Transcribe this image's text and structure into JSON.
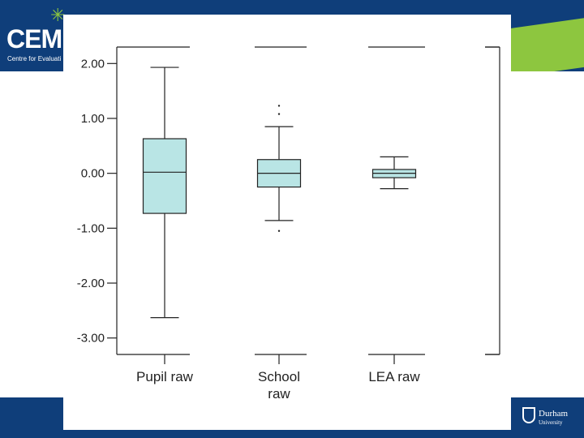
{
  "branding": {
    "logo_text": "CEM",
    "logo_subtitle": "Centre for Evaluati",
    "university_name": "Durham",
    "university_sub": "University"
  },
  "colors": {
    "navy": "#0f3e7a",
    "green": "#8dc63f",
    "box_fill": "#b9e5e5",
    "line": "#222222"
  },
  "chart_data": {
    "type": "boxplot",
    "title": "",
    "xlabel": "",
    "ylabel": "",
    "ylim": [
      -3.3,
      2.3
    ],
    "yticks": [
      2.0,
      1.0,
      0.0,
      -1.0,
      -2.0,
      -3.0
    ],
    "ytick_labels": [
      "2.00",
      "1.00",
      "0.00",
      "-1.00",
      "-2.00",
      "-3.00"
    ],
    "categories": [
      [
        "Pupil raw"
      ],
      [
        "School",
        "raw"
      ],
      [
        "LEA raw"
      ]
    ],
    "series": [
      {
        "name": "Pupil raw",
        "whisker_low": -2.63,
        "q1": -0.73,
        "median": 0.02,
        "q3": 0.63,
        "whisker_high": 1.93,
        "outliers": []
      },
      {
        "name": "School raw",
        "whisker_low": -0.86,
        "q1": -0.25,
        "median": 0.0,
        "q3": 0.25,
        "whisker_high": 0.85,
        "outliers": [
          1.23,
          1.08,
          -1.05
        ]
      },
      {
        "name": "LEA raw",
        "whisker_low": -0.28,
        "q1": -0.08,
        "median": 0.0,
        "q3": 0.07,
        "whisker_high": 0.3,
        "outliers": []
      }
    ]
  }
}
